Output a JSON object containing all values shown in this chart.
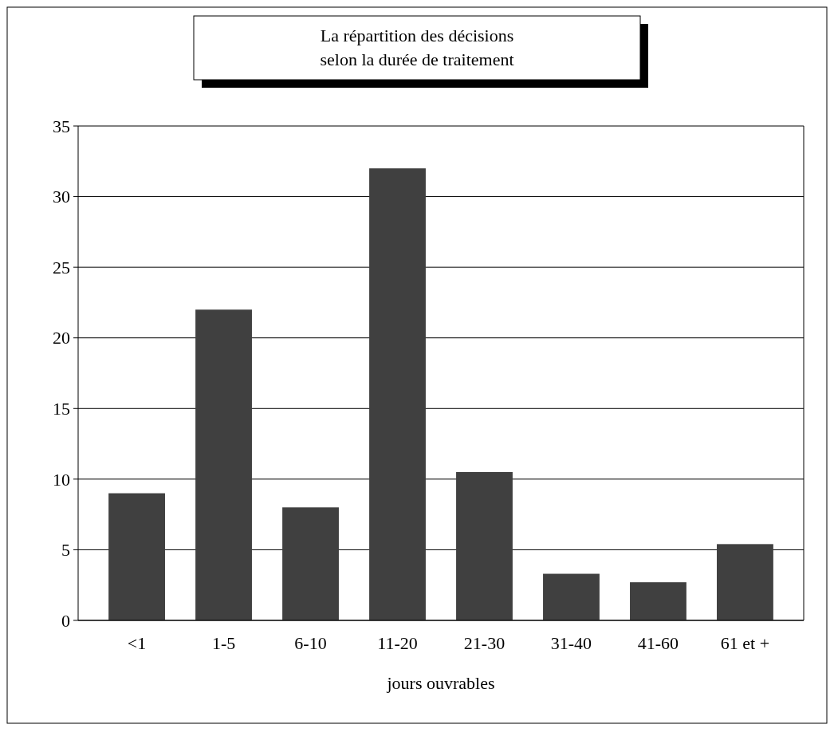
{
  "chart_data": {
    "type": "bar",
    "title": "La répartition des décisions\nselon la durée de traitement",
    "xlabel": "jours ouvrables",
    "categories": [
      "<1",
      "1-5",
      "6-10",
      "11-20",
      "21-30",
      "31-40",
      "41-60",
      "61 et +"
    ],
    "values": [
      9,
      22,
      8,
      32,
      10.5,
      3.3,
      2.7,
      5.4
    ],
    "color": "#404040",
    "ylim": [
      0,
      35
    ],
    "yticks": [
      0,
      5,
      10,
      15,
      20,
      25,
      30,
      35
    ],
    "grid": "y"
  }
}
